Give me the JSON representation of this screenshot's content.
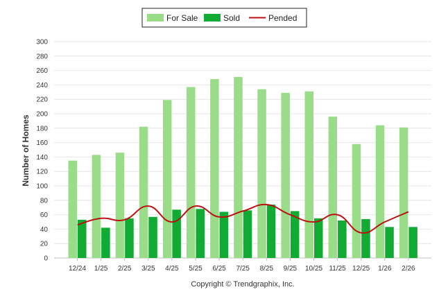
{
  "chart_data": {
    "type": "bar",
    "title": "",
    "xlabel": "",
    "ylabel": "Number of Homes",
    "ylim": [
      0,
      300
    ],
    "yticks": [
      0,
      20,
      40,
      60,
      80,
      100,
      120,
      140,
      160,
      180,
      200,
      220,
      240,
      260,
      280,
      300
    ],
    "grid": true,
    "legend_position": "top-center",
    "categories": [
      "12/24",
      "1/25",
      "2/25",
      "3/25",
      "4/25",
      "5/25",
      "6/25",
      "7/25",
      "8/25",
      "9/25",
      "10/25",
      "11/25",
      "12/25",
      "1/26",
      "2/26"
    ],
    "series": [
      {
        "name": "For Sale",
        "type": "bar",
        "color": "#99dd88",
        "values": [
          135,
          143,
          146,
          182,
          219,
          237,
          248,
          251,
          234,
          229,
          231,
          196,
          158,
          184,
          181
        ]
      },
      {
        "name": "Sold",
        "type": "bar",
        "color": "#11aa33",
        "values": [
          53,
          42,
          55,
          57,
          67,
          68,
          64,
          66,
          74,
          65,
          55,
          52,
          54,
          43,
          43
        ]
      },
      {
        "name": "Pended",
        "type": "line",
        "color": "#bb1111",
        "values": [
          46,
          55,
          53,
          72,
          50,
          72,
          57,
          65,
          74,
          60,
          50,
          60,
          35,
          50,
          64
        ]
      }
    ],
    "credit": "Copyright © Trendgraphix, Inc."
  }
}
